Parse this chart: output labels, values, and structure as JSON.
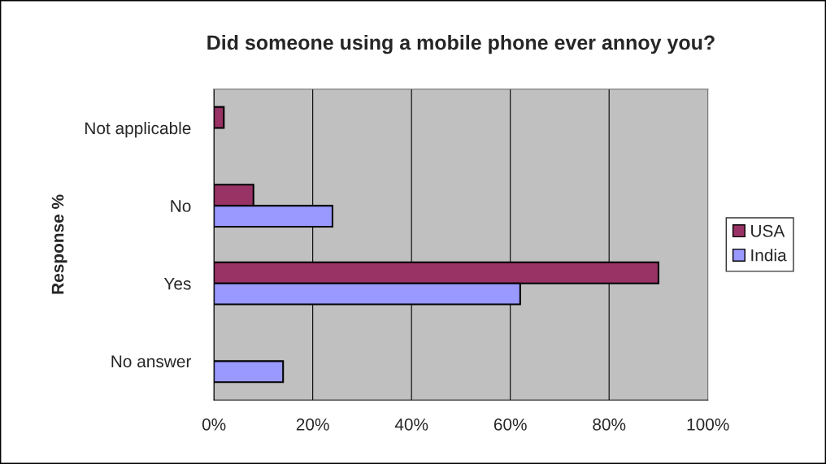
{
  "chart_data": {
    "type": "bar",
    "orientation": "horizontal",
    "title": "Did someone using a mobile phone ever annoy you?",
    "ylabel": "Response %",
    "categories": [
      "Not applicable",
      "No",
      "Yes",
      "No answer"
    ],
    "series": [
      {
        "name": "USA",
        "color": "#993366",
        "values": [
          2,
          8,
          90,
          null
        ]
      },
      {
        "name": "India",
        "color": "#9999ff",
        "values": [
          null,
          24,
          62,
          14
        ]
      }
    ],
    "xlim": [
      0,
      100
    ],
    "xticks": [
      {
        "value": 0,
        "label": "0%"
      },
      {
        "value": 20,
        "label": "20%"
      },
      {
        "value": 40,
        "label": "40%"
      },
      {
        "value": 60,
        "label": "60%"
      },
      {
        "value": 80,
        "label": "80%"
      },
      {
        "value": 100,
        "label": "100%"
      }
    ],
    "grid": "x",
    "legend": "right"
  }
}
